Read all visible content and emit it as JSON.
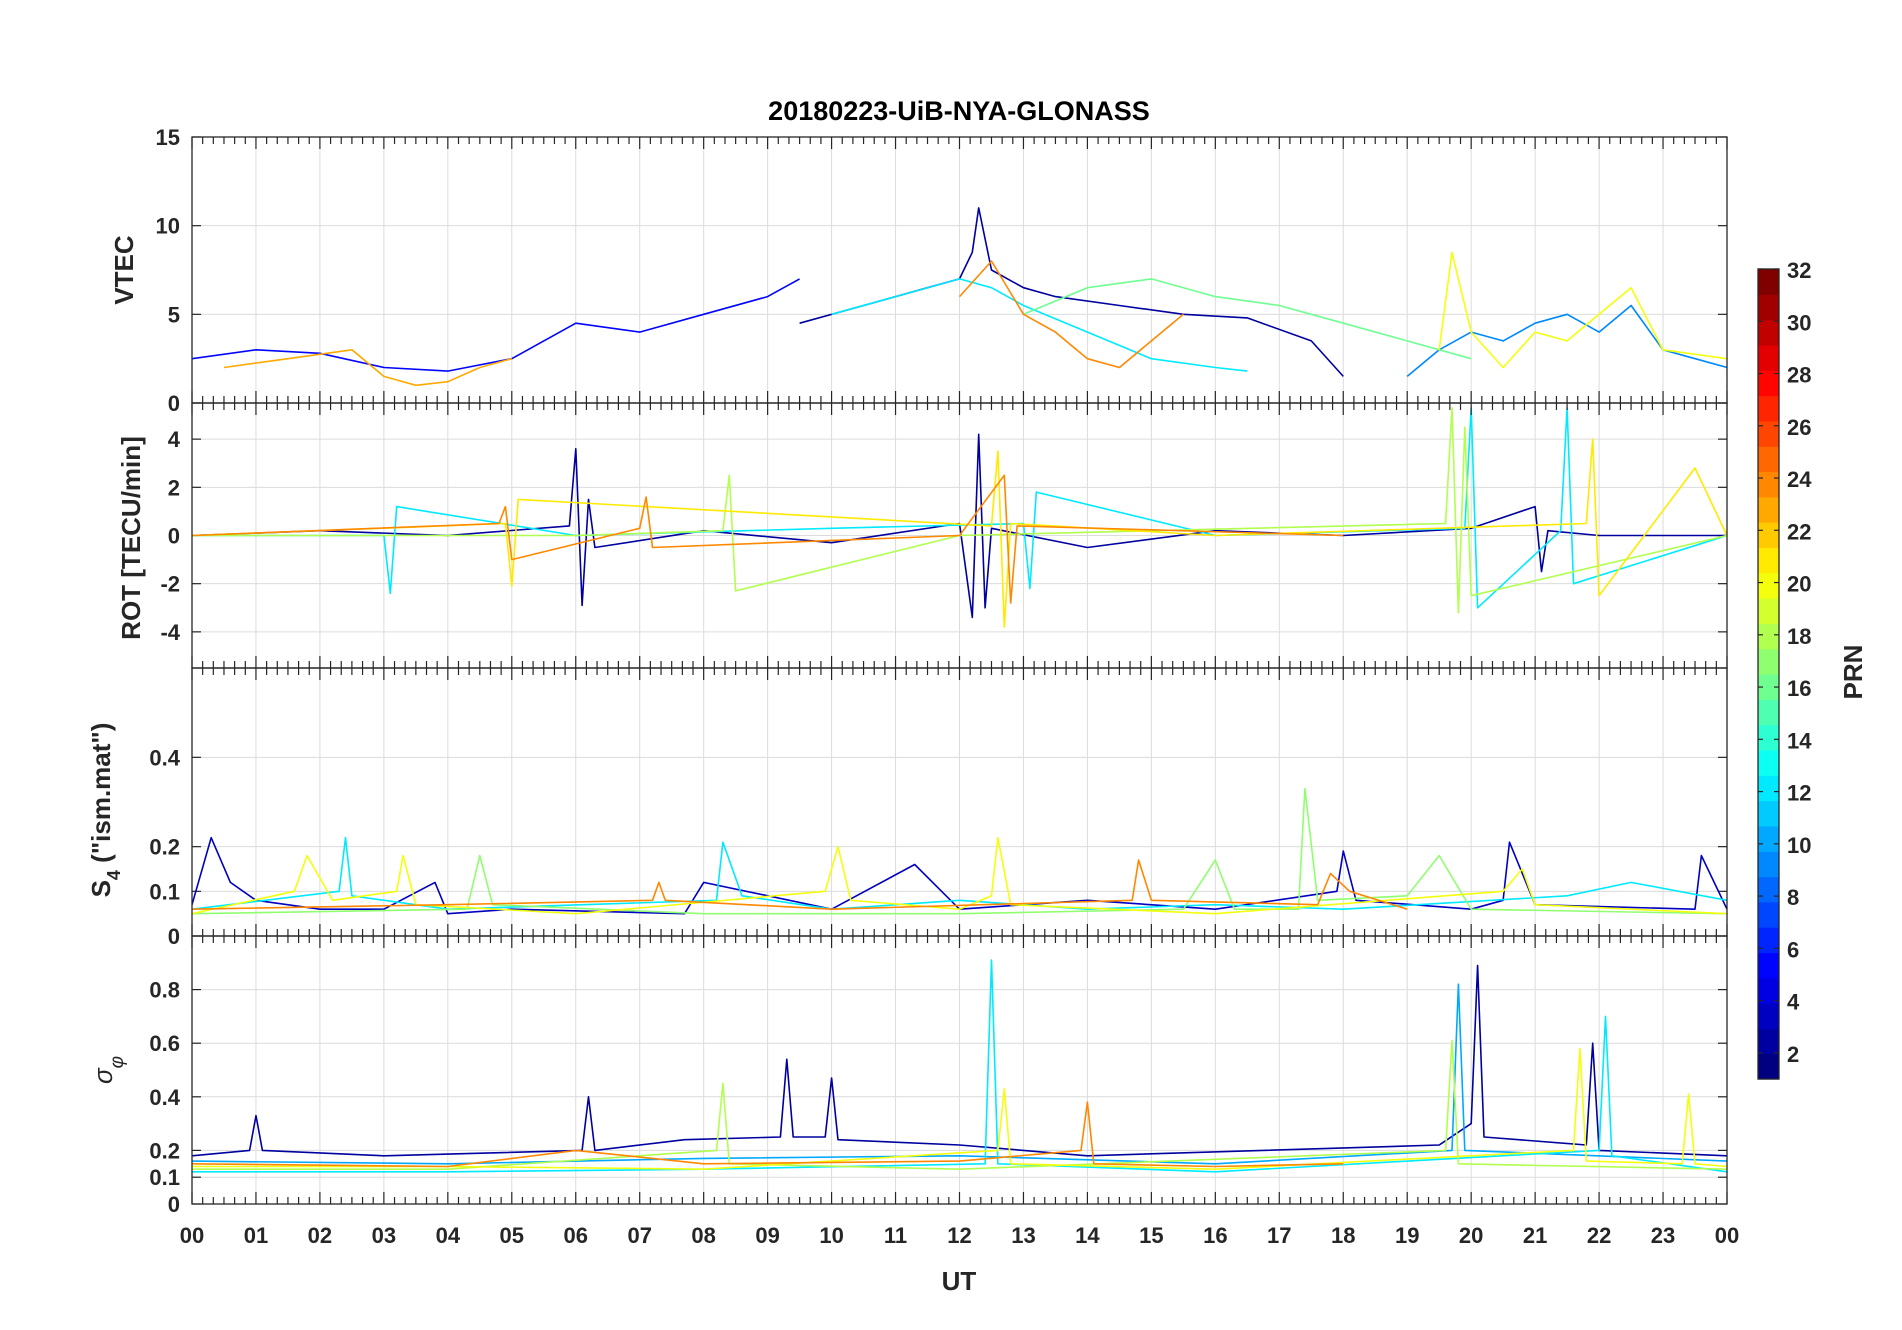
{
  "chart_data": {
    "type": "line",
    "title": "20180223-UiB-NYA-GLONASS",
    "xlabel": "UT",
    "xlim": [
      0,
      24
    ],
    "x_tick_labels": [
      "00",
      "01",
      "02",
      "03",
      "04",
      "05",
      "06",
      "07",
      "08",
      "09",
      "10",
      "11",
      "12",
      "13",
      "14",
      "15",
      "16",
      "17",
      "18",
      "19",
      "20",
      "21",
      "22",
      "23",
      "00"
    ],
    "panels": [
      {
        "id": "vtec",
        "ylabel": "VTEC",
        "ylim": [
          0,
          15
        ],
        "yticks": [
          {
            "v": 0,
            "label": "0"
          },
          {
            "v": 5,
            "label": "5"
          },
          {
            "v": 10,
            "label": "10"
          },
          {
            "v": 15,
            "label": "15"
          }
        ],
        "series": [
          {
            "name": "PRN 2",
            "prn": 2,
            "x": [
              9.5,
              10.5,
              11.5,
              12.0,
              12.2,
              12.3,
              12.5,
              13.0,
              13.5,
              14.5,
              15.5,
              16.5,
              17.5,
              18.0
            ],
            "y": [
              4.5,
              5.5,
              6.5,
              7.0,
              8.5,
              11.0,
              7.5,
              6.5,
              6.0,
              5.5,
              5.0,
              4.8,
              3.5,
              1.5
            ]
          },
          {
            "name": "PRN 5",
            "prn": 5,
            "x": [
              0,
              1,
              2,
              3,
              4,
              5,
              6,
              7,
              8,
              9,
              9.5
            ],
            "y": [
              2.5,
              3.0,
              2.8,
              2.0,
              1.8,
              2.5,
              4.5,
              4.0,
              5.0,
              6.0,
              7.0
            ]
          },
          {
            "name": "PRN 9",
            "prn": 9,
            "x": [
              19,
              19.5,
              20,
              20.5,
              21,
              21.5,
              22,
              22.5,
              23,
              24
            ],
            "y": [
              1.5,
              3.0,
              4.0,
              3.5,
              4.5,
              5.0,
              4.0,
              5.5,
              3.0,
              2.0
            ]
          },
          {
            "name": "PRN 12",
            "prn": 12,
            "x": [
              10,
              11,
              12,
              12.5,
              13,
              14,
              15,
              16,
              16.5
            ],
            "y": [
              5.0,
              6.0,
              7.0,
              6.5,
              5.5,
              4.0,
              2.5,
              2.0,
              1.8
            ]
          },
          {
            "name": "PRN 16",
            "prn": 16,
            "x": [
              13,
              14,
              15,
              16,
              17,
              18,
              19,
              20
            ],
            "y": [
              5.0,
              6.5,
              7.0,
              6.0,
              5.5,
              4.5,
              3.5,
              2.5
            ]
          },
          {
            "name": "PRN 20",
            "prn": 20,
            "x": [
              19.5,
              19.7,
              20,
              20.5,
              21,
              21.5,
              22,
              22.5,
              23,
              24
            ],
            "y": [
              3.0,
              8.5,
              4.0,
              2.0,
              4.0,
              3.5,
              5.0,
              6.5,
              3.0,
              2.5
            ]
          },
          {
            "name": "PRN 23",
            "prn": 23,
            "x": [
              0.5,
              1.5,
              2.5,
              3.0,
              3.5,
              4.0,
              4.5,
              5.0
            ],
            "y": [
              2.0,
              2.5,
              3.0,
              1.5,
              1.0,
              1.2,
              2.0,
              2.5
            ]
          },
          {
            "name": "PRN 24",
            "prn": 24,
            "x": [
              12,
              12.5,
              13,
              13.5,
              14,
              14.5,
              15,
              15.5
            ],
            "y": [
              6.0,
              8.0,
              5.0,
              4.0,
              2.5,
              2.0,
              3.5,
              5.0
            ]
          }
        ]
      },
      {
        "id": "rot",
        "ylabel": "ROT [TECU/min]",
        "ylim": [
          -5.5,
          5.5
        ],
        "yticks": [
          {
            "v": -4,
            "label": "-4"
          },
          {
            "v": -2,
            "label": "-2"
          },
          {
            "v": 0,
            "label": "0"
          },
          {
            "v": 2,
            "label": "2"
          },
          {
            "v": 4,
            "label": "4"
          }
        ],
        "series": [
          {
            "name": "PRN 2",
            "prn": 2,
            "x": [
              0,
              2,
              4,
              5.9,
              6.0,
              6.1,
              6.2,
              6.3,
              8,
              10,
              12.0,
              12.2,
              12.3,
              12.4,
              12.5,
              14,
              16,
              18,
              20,
              21.0,
              21.1,
              21.2,
              22,
              24
            ],
            "y": [
              0,
              0.2,
              0,
              0.4,
              3.6,
              -2.9,
              1.5,
              -0.5,
              0.2,
              -0.3,
              0.5,
              -3.4,
              4.2,
              -3.0,
              0.3,
              -0.5,
              0.2,
              0,
              0.3,
              1.2,
              -1.5,
              0.2,
              0,
              0
            ]
          },
          {
            "name": "PRN 12",
            "prn": 12,
            "x": [
              0,
              3.0,
              3.1,
              3.2,
              6,
              10,
              13.0,
              13.1,
              13.2,
              16,
              19.9,
              20.0,
              20.1,
              21.4,
              21.5,
              21.6,
              24
            ],
            "y": [
              0,
              0,
              -2.4,
              1.2,
              0,
              0.3,
              0.5,
              -2.2,
              1.8,
              0,
              0.3,
              5.3,
              -3.0,
              0.2,
              5.3,
              -2.0,
              0
            ]
          },
          {
            "name": "PRN 18",
            "prn": 18,
            "x": [
              0,
              6,
              8.3,
              8.4,
              8.5,
              12,
              19.6,
              19.7,
              19.8,
              19.9,
              20.0,
              24
            ],
            "y": [
              0,
              0,
              0.2,
              2.5,
              -2.3,
              0,
              0.5,
              5.3,
              -3.2,
              4.5,
              -2.5,
              0
            ]
          },
          {
            "name": "PRN 21",
            "prn": 21,
            "x": [
              0,
              4.9,
              5.0,
              5.1,
              12.5,
              12.6,
              12.7,
              12.8,
              16,
              21.8,
              21.9,
              22.0,
              23.5,
              24
            ],
            "y": [
              0,
              0.5,
              -2.1,
              1.5,
              0.4,
              3.5,
              -3.8,
              0.5,
              0,
              0.5,
              4.0,
              -2.5,
              2.8,
              0
            ]
          },
          {
            "name": "PRN 24",
            "prn": 24,
            "x": [
              0,
              4.8,
              4.9,
              5.0,
              7.0,
              7.1,
              7.2,
              12,
              12.7,
              12.8,
              12.9,
              18
            ],
            "y": [
              0,
              0.5,
              1.2,
              -1.0,
              0.3,
              1.6,
              -0.5,
              0,
              2.5,
              -2.8,
              0.4,
              0
            ]
          }
        ]
      },
      {
        "id": "s4",
        "ylabel": "S4 (\"ism.mat\")",
        "ylim": [
          0,
          0.6
        ],
        "yticks": [
          {
            "v": 0,
            "label": "0"
          },
          {
            "v": 0.1,
            "label": "0.1"
          },
          {
            "v": 0.2,
            "label": "0.2"
          },
          {
            "v": 0.4,
            "label": "0.4"
          }
        ],
        "series": [
          {
            "name": "PRN 3",
            "prn": 3,
            "x": [
              0,
              0.3,
              0.6,
              1.0,
              2,
              3,
              3.8,
              4,
              5,
              7.7,
              8.0,
              10,
              11.3,
              12,
              14,
              16,
              17.9,
              18.0,
              18.2,
              20,
              20.5,
              20.6,
              21,
              23.5,
              23.6,
              24
            ],
            "y": [
              0.07,
              0.22,
              0.12,
              0.08,
              0.06,
              0.06,
              0.12,
              0.05,
              0.06,
              0.05,
              0.12,
              0.06,
              0.16,
              0.06,
              0.08,
              0.06,
              0.1,
              0.19,
              0.08,
              0.06,
              0.08,
              0.21,
              0.07,
              0.06,
              0.18,
              0.06
            ]
          },
          {
            "name": "PRN 12",
            "prn": 12,
            "x": [
              0,
              2.3,
              2.4,
              2.5,
              4,
              8.2,
              8.3,
              8.6,
              10,
              12,
              14,
              16,
              18,
              21.5,
              22.5,
              24
            ],
            "y": [
              0.06,
              0.1,
              0.22,
              0.09,
              0.06,
              0.08,
              0.21,
              0.09,
              0.06,
              0.08,
              0.06,
              0.07,
              0.06,
              0.09,
              0.12,
              0.08
            ]
          },
          {
            "name": "PRN 17",
            "prn": 17,
            "x": [
              0,
              4.3,
              4.5,
              4.7,
              8,
              12,
              15.5,
              16.0,
              16.3,
              17.3,
              17.4,
              17.6,
              19.0,
              19.5,
              20,
              24
            ],
            "y": [
              0.05,
              0.06,
              0.18,
              0.07,
              0.05,
              0.05,
              0.06,
              0.17,
              0.06,
              0.06,
              0.33,
              0.08,
              0.09,
              0.18,
              0.06,
              0.05
            ]
          },
          {
            "name": "PRN 20",
            "prn": 20,
            "x": [
              0,
              1.6,
              1.8,
              2.2,
              3.2,
              3.3,
              3.5,
              6,
              9.9,
              10.1,
              10.3,
              12,
              12.5,
              12.6,
              12.8,
              16,
              20.5,
              20.8,
              21,
              24
            ],
            "y": [
              0.05,
              0.1,
              0.18,
              0.08,
              0.1,
              0.18,
              0.07,
              0.05,
              0.1,
              0.2,
              0.08,
              0.06,
              0.09,
              0.22,
              0.07,
              0.05,
              0.1,
              0.15,
              0.07,
              0.05
            ]
          },
          {
            "name": "PRN 24",
            "prn": 24,
            "x": [
              0,
              4,
              7.2,
              7.3,
              7.4,
              10,
              14.7,
              14.8,
              15.0,
              17.6,
              17.8,
              18.1,
              19
            ],
            "y": [
              0.06,
              0.07,
              0.08,
              0.12,
              0.08,
              0.06,
              0.08,
              0.17,
              0.08,
              0.07,
              0.14,
              0.1,
              0.06
            ]
          }
        ]
      },
      {
        "id": "sigma_phi",
        "ylabel": "σφ",
        "ylim": [
          0,
          1
        ],
        "yticks": [
          {
            "v": 0,
            "label": "0"
          },
          {
            "v": 0.1,
            "label": "0.1"
          },
          {
            "v": 0.2,
            "label": "0.2"
          },
          {
            "v": 0.4,
            "label": "0.4"
          },
          {
            "v": 0.6,
            "label": "0.6"
          },
          {
            "v": 0.8,
            "label": "0.8"
          }
        ],
        "series": [
          {
            "name": "PRN 2",
            "prn": 2,
            "x": [
              0,
              0.9,
              1.0,
              1.1,
              3,
              6.1,
              6.2,
              6.3,
              7.7,
              9.2,
              9.3,
              9.4,
              9.9,
              10.0,
              10.1,
              12,
              14,
              19.5,
              20.0,
              20.1,
              20.2,
              21.8,
              21.9,
              22.0,
              24
            ],
            "y": [
              0.18,
              0.2,
              0.33,
              0.2,
              0.18,
              0.2,
              0.4,
              0.2,
              0.24,
              0.25,
              0.54,
              0.25,
              0.25,
              0.47,
              0.24,
              0.22,
              0.18,
              0.22,
              0.3,
              0.89,
              0.25,
              0.22,
              0.6,
              0.2,
              0.18
            ]
          },
          {
            "name": "PRN 10",
            "prn": 10,
            "x": [
              0,
              4,
              8,
              12,
              16,
              19.7,
              19.8,
              19.9,
              24
            ],
            "y": [
              0.16,
              0.15,
              0.17,
              0.18,
              0.15,
              0.2,
              0.82,
              0.2,
              0.16
            ]
          },
          {
            "name": "PRN 12",
            "prn": 12,
            "x": [
              0,
              4,
              8,
              12.4,
              12.5,
              12.6,
              16,
              22.0,
              22.1,
              22.2,
              24
            ],
            "y": [
              0.12,
              0.12,
              0.13,
              0.15,
              0.91,
              0.15,
              0.12,
              0.2,
              0.7,
              0.18,
              0.12
            ]
          },
          {
            "name": "PRN 18",
            "prn": 18,
            "x": [
              0,
              4,
              8.2,
              8.3,
              8.4,
              12,
              19.6,
              19.7,
              19.8,
              24
            ],
            "y": [
              0.13,
              0.13,
              0.2,
              0.45,
              0.15,
              0.13,
              0.2,
              0.61,
              0.15,
              0.13
            ]
          },
          {
            "name": "PRN 20",
            "prn": 20,
            "x": [
              0,
              4,
              8,
              12.6,
              12.7,
              12.8,
              16,
              21.6,
              21.7,
              21.8,
              23.3,
              23.4,
              23.5,
              24
            ],
            "y": [
              0.14,
              0.14,
              0.13,
              0.2,
              0.43,
              0.15,
              0.13,
              0.2,
              0.58,
              0.16,
              0.15,
              0.41,
              0.15,
              0.14
            ]
          },
          {
            "name": "PRN 24",
            "prn": 24,
            "x": [
              0,
              4,
              6.0,
              8,
              12,
              13.9,
              14.0,
              14.1,
              16,
              18
            ],
            "y": [
              0.15,
              0.14,
              0.2,
              0.15,
              0.16,
              0.2,
              0.38,
              0.15,
              0.14,
              0.15
            ]
          }
        ]
      }
    ],
    "colorbar": {
      "label": "PRN",
      "min": 1,
      "max": 32,
      "colormap": "jet",
      "ticks": [
        {
          "v": 2,
          "label": "2"
        },
        {
          "v": 4,
          "label": "4"
        },
        {
          "v": 6,
          "label": "6"
        },
        {
          "v": 8,
          "label": "8"
        },
        {
          "v": 10,
          "label": "10"
        },
        {
          "v": 12,
          "label": "12"
        },
        {
          "v": 14,
          "label": "14"
        },
        {
          "v": 16,
          "label": "16"
        },
        {
          "v": 18,
          "label": "18"
        },
        {
          "v": 20,
          "label": "20"
        },
        {
          "v": 22,
          "label": "22"
        },
        {
          "v": 24,
          "label": "24"
        },
        {
          "v": 26,
          "label": "26"
        },
        {
          "v": 28,
          "label": "28"
        },
        {
          "v": 30,
          "label": "30"
        },
        {
          "v": 32,
          "label": "32"
        }
      ]
    }
  }
}
